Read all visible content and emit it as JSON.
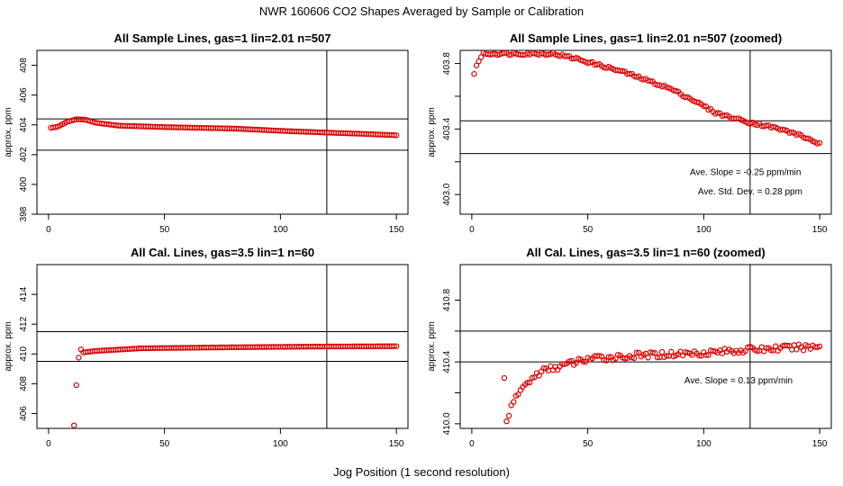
{
  "page": {
    "main_title": "NWR  160606  CO2 Shapes Averaged by Sample or Calibration",
    "x_axis_title": "Jog Position (1 second resolution)"
  },
  "chart_data": [
    {
      "id": "p1",
      "type": "scatter",
      "title": "All Sample Lines, gas=1 lin=2.01 n=507",
      "xlabel": "",
      "ylabel": "approx. ppm",
      "xlim": [
        -5,
        155
      ],
      "ylim": [
        398,
        409
      ],
      "xticks": [
        0,
        50,
        100,
        150
      ],
      "yticks": [
        398,
        400,
        402,
        404,
        406,
        408
      ],
      "ytick_labels": [
        "398",
        "400",
        "402",
        "404",
        "406",
        "408"
      ],
      "hlines": [
        404.4,
        402.3
      ],
      "vlines": [
        120
      ],
      "annotations": [],
      "point_color": "#dd0000",
      "curve": {
        "x_start": 1,
        "x_end": 150,
        "x_step": 1,
        "knots": [
          [
            1,
            403.8
          ],
          [
            4,
            403.88
          ],
          [
            8,
            404.2
          ],
          [
            12,
            404.38
          ],
          [
            16,
            404.35
          ],
          [
            20,
            404.15
          ],
          [
            30,
            403.95
          ],
          [
            50,
            403.85
          ],
          [
            80,
            403.75
          ],
          [
            100,
            403.6
          ],
          [
            120,
            403.48
          ],
          [
            135,
            403.4
          ],
          [
            150,
            403.3
          ]
        ],
        "noise": 0
      }
    },
    {
      "id": "p2",
      "type": "scatter",
      "title": "All Sample Lines, gas=1 lin=2.01 n=507 (zoomed)",
      "xlabel": "",
      "ylabel": "approx. ppm",
      "xlim": [
        -5,
        155
      ],
      "ylim": [
        402.88,
        403.88
      ],
      "xticks": [
        0,
        50,
        100,
        150
      ],
      "yticks": [
        403.0,
        403.4,
        403.8
      ],
      "ytick_labels": [
        "403.0",
        "403.4",
        "403.8"
      ],
      "yticks_minor": [
        403.2,
        403.6
      ],
      "hlines": [
        403.45,
        403.25
      ],
      "vlines": [
        120
      ],
      "annotations": [
        {
          "text": "Ave. Slope =  -0.25  ppm/min",
          "x": 118,
          "y": 403.12
        },
        {
          "text": "Ave. Std. Dev. =  0.28  ppm",
          "x": 120,
          "y": 403.0
        }
      ],
      "point_color": "#dd0000",
      "curve": {
        "x_start": 1,
        "x_end": 150,
        "x_step": 1,
        "knots": [
          [
            1,
            403.74
          ],
          [
            2,
            403.78
          ],
          [
            3,
            403.82
          ],
          [
            5,
            403.86
          ],
          [
            35,
            403.86
          ],
          [
            45,
            403.83
          ],
          [
            55,
            403.79
          ],
          [
            65,
            403.75
          ],
          [
            75,
            403.7
          ],
          [
            85,
            403.65
          ],
          [
            95,
            403.58
          ],
          [
            105,
            403.5
          ],
          [
            112,
            403.47
          ],
          [
            120,
            403.44
          ],
          [
            130,
            403.41
          ],
          [
            140,
            403.37
          ],
          [
            150,
            403.31
          ]
        ],
        "noise": 0.008
      }
    },
    {
      "id": "p3",
      "type": "scatter",
      "title": "All Cal. Lines, gas=3.5 lin=1 n=60",
      "xlabel": "",
      "ylabel": "approx. ppm",
      "xlim": [
        -5,
        155
      ],
      "ylim": [
        405,
        416
      ],
      "xticks": [
        0,
        50,
        100,
        150
      ],
      "yticks": [
        406,
        408,
        410,
        412,
        414
      ],
      "ytick_labels": [
        "406",
        "408",
        "410",
        "412",
        "414"
      ],
      "hlines": [
        411.5,
        409.5
      ],
      "vlines": [
        120
      ],
      "annotations": [],
      "point_color": "#dd0000",
      "curve": {
        "x_start": 11,
        "x_end": 150,
        "x_step": 1,
        "knots": [
          [
            11,
            405.2
          ],
          [
            12,
            407.9
          ],
          [
            13,
            409.75
          ],
          [
            14,
            410.3
          ],
          [
            15,
            410.1
          ],
          [
            20,
            410.2
          ],
          [
            40,
            410.38
          ],
          [
            80,
            410.45
          ],
          [
            120,
            410.5
          ],
          [
            150,
            410.52
          ]
        ],
        "noise": 0
      }
    },
    {
      "id": "p4",
      "type": "scatter",
      "title": "All Cal. Lines, gas=3.5 lin=1 n=60 (zoomed)",
      "xlabel": "",
      "ylabel": "approx. ppm",
      "xlim": [
        -5,
        155
      ],
      "ylim": [
        409.97,
        411.03
      ],
      "xticks": [
        0,
        50,
        100,
        150
      ],
      "yticks": [
        410.0,
        410.4,
        410.8
      ],
      "ytick_labels": [
        "410.0",
        "410.4",
        "410.8"
      ],
      "yticks_minor": [
        410.2,
        410.6
      ],
      "hlines": [
        410.6,
        410.4
      ],
      "vlines": [
        120
      ],
      "annotations": [
        {
          "text": "Ave. Slope =  0.13  ppm/min",
          "x": 115,
          "y": 410.26
        }
      ],
      "point_color": "#dd0000",
      "curve": {
        "x_start": 14,
        "x_end": 150,
        "x_step": 1,
        "knots": [
          [
            14,
            410.29
          ],
          [
            15,
            410.03
          ],
          [
            17,
            410.1
          ],
          [
            20,
            410.2
          ],
          [
            25,
            410.28
          ],
          [
            30,
            410.34
          ],
          [
            40,
            410.38
          ],
          [
            50,
            410.42
          ],
          [
            70,
            410.44
          ],
          [
            100,
            410.46
          ],
          [
            120,
            410.48
          ],
          [
            150,
            410.5
          ]
        ],
        "noise": 0.02
      }
    }
  ]
}
